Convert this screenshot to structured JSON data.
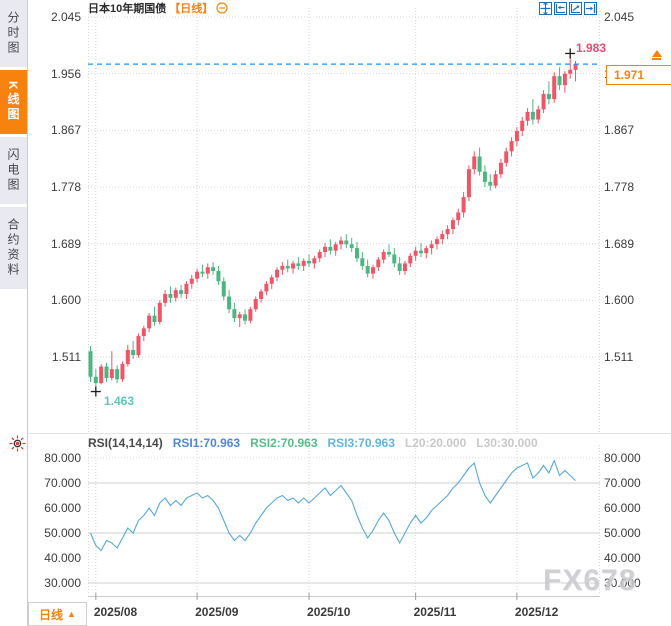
{
  "header": {
    "symbol": "日本10年期国债",
    "period_label": "【日线】"
  },
  "sidebar": {
    "tabs": [
      {
        "label": "分时图",
        "active": false
      },
      {
        "label": "K线图",
        "active": true
      },
      {
        "label": "闪电图",
        "active": false
      },
      {
        "label": "合约资料",
        "active": false
      }
    ]
  },
  "toolbar": {
    "icons": [
      "pan-tool",
      "compress-x",
      "expand-x",
      "goto-latest"
    ]
  },
  "annotations": {
    "high": "1.983",
    "low": "1.463",
    "last": "1.971"
  },
  "rsi": {
    "legend": [
      {
        "text": "RSI(14,14,14)",
        "color": "#4a4a4a"
      },
      {
        "text": "RSI1:70.963",
        "color": "#4f86d4"
      },
      {
        "text": "RSI2:70.963",
        "color": "#55bb87"
      },
      {
        "text": "RSI3:70.963",
        "color": "#5fb6e0"
      },
      {
        "text": "L20:20.000",
        "color": "#c8c8c8"
      },
      {
        "text": "L30:30.000",
        "color": "#c8c8c8"
      }
    ]
  },
  "footer": {
    "period_button": "日线",
    "period_arrow": "▲"
  },
  "watermark": {
    "text": "FX678"
  },
  "colors": {
    "up": "#ee5566",
    "down": "#4cb581",
    "dash": "#2a8df0",
    "rsi_line": "#58a8d8",
    "accent": "#f8820e",
    "grid": "#d7d7dc",
    "level_line": "#cfcfcf"
  },
  "chart_data": [
    {
      "type": "candlestick",
      "title": "日本10年期国债 日线",
      "x_axis": {
        "tick_labels": [
          "2025/08",
          "2025/09",
          "2025/10",
          "2025/11",
          "2025/12"
        ],
        "tick_candle_index": [
          1,
          20,
          41,
          61,
          80
        ]
      },
      "y_axis": {
        "ticks": [
          2.045,
          1.956,
          1.867,
          1.778,
          1.689,
          1.6,
          1.511
        ]
      },
      "last_price": 1.971,
      "high_marker": {
        "index": 90,
        "price": 1.983
      },
      "low_marker": {
        "index": 1,
        "price": 1.463
      },
      "candles": [
        [
          1.52,
          1.528,
          1.472,
          1.48
        ],
        [
          1.48,
          1.492,
          1.463,
          1.47
        ],
        [
          1.47,
          1.5,
          1.468,
          1.496
        ],
        [
          1.496,
          1.502,
          1.472,
          1.478
        ],
        [
          1.478,
          1.52,
          1.474,
          1.492
        ],
        [
          1.492,
          1.498,
          1.47,
          1.476
        ],
        [
          1.476,
          1.504,
          1.472,
          1.5
        ],
        [
          1.5,
          1.53,
          1.496,
          1.522
        ],
        [
          1.522,
          1.536,
          1.508,
          1.514
        ],
        [
          1.514,
          1.548,
          1.51,
          1.544
        ],
        [
          1.544,
          1.56,
          1.536,
          1.556
        ],
        [
          1.556,
          1.58,
          1.55,
          1.576
        ],
        [
          1.576,
          1.59,
          1.56,
          1.566
        ],
        [
          1.566,
          1.6,
          1.562,
          1.596
        ],
        [
          1.596,
          1.616,
          1.59,
          1.61
        ],
        [
          1.61,
          1.622,
          1.596,
          1.604
        ],
        [
          1.604,
          1.62,
          1.598,
          1.616
        ],
        [
          1.616,
          1.624,
          1.604,
          1.61
        ],
        [
          1.61,
          1.63,
          1.602,
          1.626
        ],
        [
          1.626,
          1.64,
          1.618,
          1.634
        ],
        [
          1.634,
          1.65,
          1.628,
          1.645
        ],
        [
          1.645,
          1.656,
          1.636,
          1.642
        ],
        [
          1.642,
          1.658,
          1.634,
          1.652
        ],
        [
          1.652,
          1.66,
          1.64,
          1.646
        ],
        [
          1.646,
          1.654,
          1.624,
          1.63
        ],
        [
          1.63,
          1.636,
          1.6,
          1.606
        ],
        [
          1.606,
          1.616,
          1.58,
          1.586
        ],
        [
          1.586,
          1.596,
          1.566,
          1.572
        ],
        [
          1.572,
          1.582,
          1.558,
          1.578
        ],
        [
          1.578,
          1.586,
          1.562,
          1.568
        ],
        [
          1.568,
          1.59,
          1.564,
          1.586
        ],
        [
          1.586,
          1.606,
          1.582,
          1.602
        ],
        [
          1.602,
          1.618,
          1.596,
          1.614
        ],
        [
          1.614,
          1.63,
          1.608,
          1.626
        ],
        [
          1.626,
          1.64,
          1.618,
          1.636
        ],
        [
          1.636,
          1.652,
          1.63,
          1.648
        ],
        [
          1.648,
          1.66,
          1.64,
          1.654
        ],
        [
          1.654,
          1.664,
          1.644,
          1.65
        ],
        [
          1.65,
          1.662,
          1.642,
          1.658
        ],
        [
          1.658,
          1.668,
          1.648,
          1.654
        ],
        [
          1.654,
          1.666,
          1.646,
          1.662
        ],
        [
          1.662,
          1.672,
          1.652,
          1.658
        ],
        [
          1.658,
          1.67,
          1.65,
          1.666
        ],
        [
          1.666,
          1.68,
          1.66,
          1.676
        ],
        [
          1.676,
          1.69,
          1.668,
          1.684
        ],
        [
          1.684,
          1.696,
          1.672,
          1.678
        ],
        [
          1.678,
          1.692,
          1.67,
          1.688
        ],
        [
          1.688,
          1.7,
          1.68,
          1.694
        ],
        [
          1.694,
          1.704,
          1.682,
          1.688
        ],
        [
          1.688,
          1.698,
          1.676,
          1.682
        ],
        [
          1.682,
          1.692,
          1.66,
          1.666
        ],
        [
          1.666,
          1.676,
          1.648,
          1.654
        ],
        [
          1.654,
          1.664,
          1.636,
          1.642
        ],
        [
          1.642,
          1.656,
          1.634,
          1.652
        ],
        [
          1.652,
          1.668,
          1.646,
          1.664
        ],
        [
          1.664,
          1.68,
          1.658,
          1.676
        ],
        [
          1.676,
          1.688,
          1.668,
          1.672
        ],
        [
          1.672,
          1.682,
          1.652,
          1.658
        ],
        [
          1.658,
          1.668,
          1.64,
          1.646
        ],
        [
          1.646,
          1.662,
          1.64,
          1.658
        ],
        [
          1.658,
          1.674,
          1.652,
          1.67
        ],
        [
          1.67,
          1.684,
          1.662,
          1.678
        ],
        [
          1.678,
          1.69,
          1.668,
          1.674
        ],
        [
          1.674,
          1.686,
          1.666,
          1.682
        ],
        [
          1.682,
          1.694,
          1.672,
          1.688
        ],
        [
          1.688,
          1.7,
          1.68,
          1.696
        ],
        [
          1.696,
          1.71,
          1.688,
          1.704
        ],
        [
          1.704,
          1.718,
          1.696,
          1.712
        ],
        [
          1.712,
          1.73,
          1.704,
          1.726
        ],
        [
          1.726,
          1.744,
          1.718,
          1.738
        ],
        [
          1.738,
          1.77,
          1.73,
          1.762
        ],
        [
          1.762,
          1.812,
          1.756,
          1.806
        ],
        [
          1.806,
          1.834,
          1.798,
          1.826
        ],
        [
          1.826,
          1.84,
          1.796,
          1.802
        ],
        [
          1.802,
          1.812,
          1.778,
          1.786
        ],
        [
          1.786,
          1.798,
          1.772,
          1.78
        ],
        [
          1.78,
          1.804,
          1.776,
          1.798
        ],
        [
          1.798,
          1.822,
          1.792,
          1.816
        ],
        [
          1.816,
          1.84,
          1.81,
          1.834
        ],
        [
          1.834,
          1.856,
          1.826,
          1.85
        ],
        [
          1.85,
          1.872,
          1.842,
          1.866
        ],
        [
          1.866,
          1.888,
          1.858,
          1.882
        ],
        [
          1.882,
          1.902,
          1.874,
          1.896
        ],
        [
          1.896,
          1.916,
          1.876,
          1.884
        ],
        [
          1.884,
          1.906,
          1.878,
          1.9
        ],
        [
          1.9,
          1.93,
          1.894,
          1.924
        ],
        [
          1.924,
          1.944,
          1.908,
          1.916
        ],
        [
          1.916,
          1.958,
          1.91,
          1.952
        ],
        [
          1.952,
          1.966,
          1.93,
          1.938
        ],
        [
          1.938,
          1.96,
          1.926,
          1.956
        ],
        [
          1.956,
          1.983,
          1.948,
          1.962
        ],
        [
          1.962,
          1.976,
          1.944,
          1.971
        ]
      ]
    },
    {
      "type": "line",
      "title": "RSI(14,14,14)",
      "y_axis": {
        "ticks": [
          80,
          70,
          60,
          50,
          40,
          30
        ],
        "solid_levels": [
          70,
          50,
          30
        ],
        "dotted_levels": [
          80
        ]
      },
      "last_value": 70.963,
      "values": [
        50,
        45,
        43,
        47,
        46,
        44,
        48,
        52,
        50,
        55,
        57,
        60,
        57,
        62,
        64,
        61,
        63,
        61,
        64,
        65,
        66,
        64,
        65,
        63,
        60,
        55,
        50,
        47,
        49,
        47,
        50,
        54,
        57,
        60,
        62,
        64,
        65,
        63,
        64,
        62,
        64,
        62,
        64,
        66,
        68,
        65,
        67,
        69,
        66,
        63,
        57,
        52,
        48,
        51,
        55,
        58,
        55,
        50,
        46,
        50,
        54,
        57,
        54,
        56,
        59,
        61,
        63,
        65,
        68,
        70,
        73,
        76,
        78,
        70,
        65,
        62,
        65,
        68,
        71,
        74,
        76,
        77,
        78,
        72,
        74,
        77,
        74,
        79,
        73,
        75,
        73,
        70.963
      ]
    }
  ]
}
